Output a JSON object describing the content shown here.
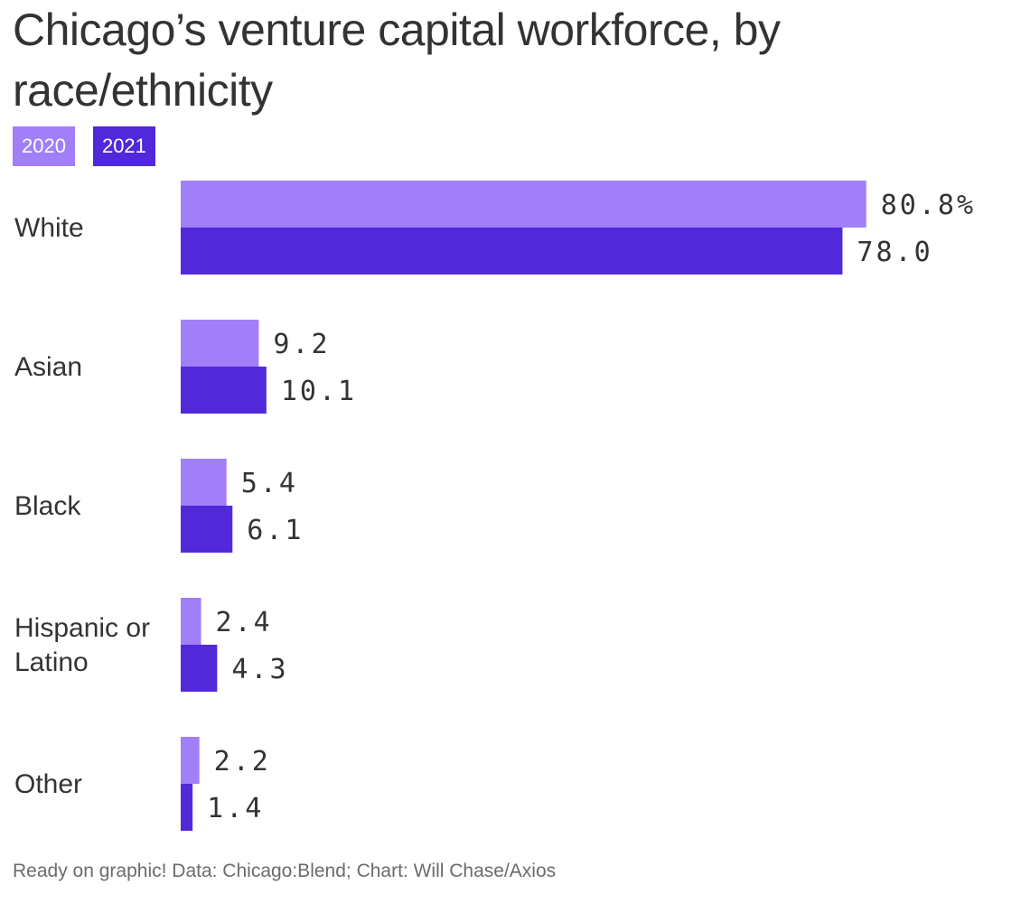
{
  "title": "Chicago’s venture capital workforce, by race/ethnicity",
  "footer": "Ready on graphic! Data: Chicago:Blend; Chart: Will Chase/Axios",
  "colors": {
    "series_2020": "#a07ff9",
    "series_2021": "#5228db",
    "text": "#333333"
  },
  "chart_data": {
    "type": "bar",
    "orientation": "horizontal",
    "categories": [
      "White",
      "Asian",
      "Black",
      "Hispanic or Latino",
      "Other"
    ],
    "category_lines": [
      [
        "White"
      ],
      [
        "Asian"
      ],
      [
        "Black"
      ],
      [
        "Hispanic or",
        "Latino"
      ],
      [
        "Other"
      ]
    ],
    "series": [
      {
        "name": "2020",
        "values": [
          80.8,
          9.2,
          5.4,
          2.4,
          2.2
        ],
        "labels": [
          "80.8%",
          "9.2",
          "5.4",
          "2.4",
          "2.2"
        ]
      },
      {
        "name": "2021",
        "values": [
          78.0,
          10.1,
          6.1,
          4.3,
          1.4
        ],
        "labels": [
          "78.0",
          "10.1",
          "6.1",
          "4.3",
          "1.4"
        ]
      }
    ],
    "title": "Chicago’s venture capital workforce, by race/ethnicity",
    "xlim": [
      0,
      100
    ],
    "grid": false,
    "legend": "top-left",
    "unit": "%"
  }
}
